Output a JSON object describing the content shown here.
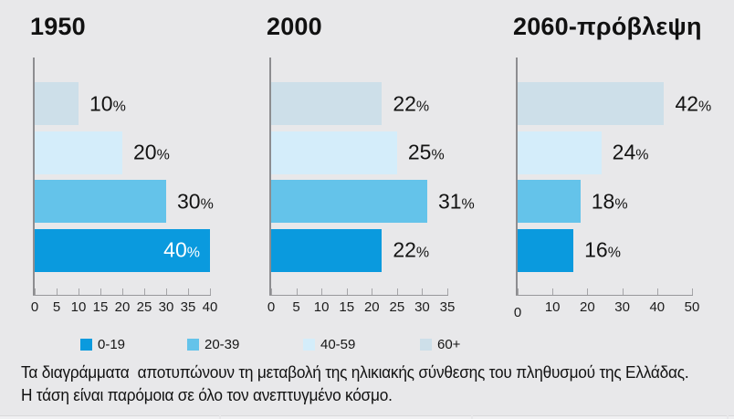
{
  "colors": {
    "background": "#e8e8ea",
    "axis": "#98989b",
    "text": "#111111",
    "bar_label_inside": "#ffffff"
  },
  "chart_data": [
    {
      "type": "bar",
      "orientation": "horizontal",
      "title": "1950",
      "categories": [
        "60+",
        "40-59",
        "20-39",
        "0-19"
      ],
      "values": [
        10,
        20,
        30,
        40
      ],
      "bar_labels": [
        "10%",
        "20%",
        "30%",
        "40%"
      ],
      "label_inside": [
        false,
        false,
        false,
        true
      ],
      "xlim": [
        0,
        40
      ],
      "xticks": [
        0,
        5,
        10,
        15,
        20,
        25,
        30,
        35,
        40
      ],
      "grid": false
    },
    {
      "type": "bar",
      "orientation": "horizontal",
      "title": "2000",
      "categories": [
        "60+",
        "40-59",
        "20-39",
        "0-19"
      ],
      "values": [
        22,
        25,
        31,
        22
      ],
      "bar_labels": [
        "22%",
        "25%",
        "31%",
        "22%"
      ],
      "label_inside": [
        false,
        false,
        false,
        false
      ],
      "xlim": [
        0,
        35
      ],
      "xticks": [
        0,
        5,
        10,
        15,
        20,
        25,
        30,
        35
      ],
      "grid": false
    },
    {
      "type": "bar",
      "orientation": "horizontal",
      "title": "2060-πρόβλεψη",
      "categories": [
        "60+",
        "40-59",
        "20-39",
        "0-19"
      ],
      "values": [
        42,
        24,
        18,
        16
      ],
      "bar_labels": [
        "42%",
        "24%",
        "18%",
        "16%"
      ],
      "label_inside": [
        false,
        false,
        false,
        false
      ],
      "xlim": [
        0,
        50
      ],
      "xticks": [
        0,
        10,
        20,
        30,
        40,
        50
      ],
      "grid": false
    }
  ],
  "legend": {
    "position": "bottom",
    "items": [
      {
        "label": "0-19",
        "color": "#0a9ade"
      },
      {
        "label": "20-39",
        "color": "#64c3ea"
      },
      {
        "label": "40-59",
        "color": "#d4edfa"
      },
      {
        "label": "60+",
        "color": "#cddfe9"
      }
    ]
  },
  "caption": {
    "line1": "Τα διαγράμματα  αποτυπώνουν τη μεταβολή της ηλικιακής σύνθεσης του πληθυσμού της Ελλάδας.",
    "line2": "Η τάση είναι παρόμοια σε όλο τον ανεπτυγμένο κόσμο."
  }
}
